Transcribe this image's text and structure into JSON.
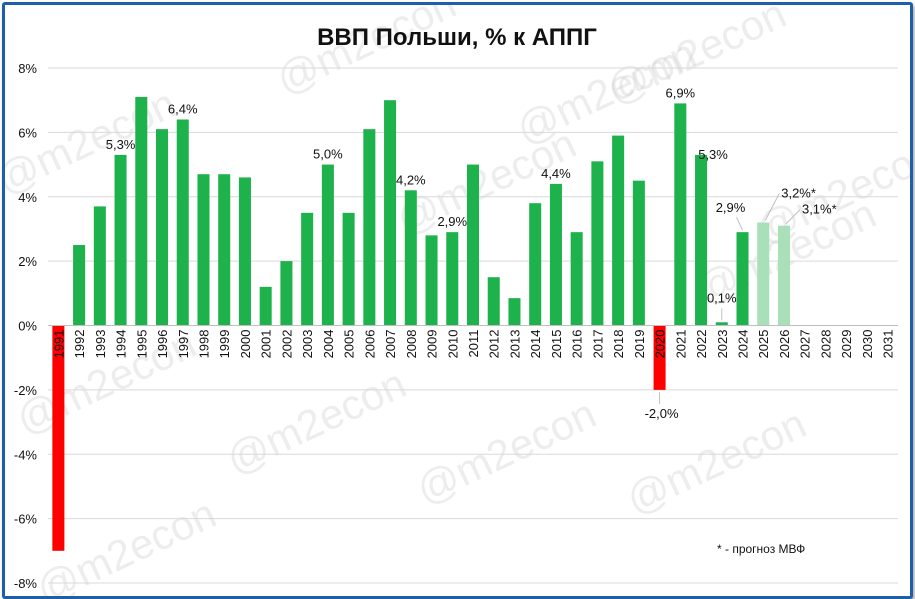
{
  "chart_data": {
    "type": "bar",
    "title": "ВВП Польши, % к АППГ",
    "xlabel": "",
    "ylabel": "",
    "ylim": [
      -8,
      8
    ],
    "yticks": [
      "8%",
      "6%",
      "4%",
      "2%",
      "0%",
      "-2%",
      "-4%",
      "-6%",
      "-8%"
    ],
    "grid": true,
    "categories": [
      "1991",
      "1992",
      "1993",
      "1994",
      "1995",
      "1996",
      "1997",
      "1998",
      "1999",
      "2000",
      "2001",
      "2002",
      "2003",
      "2004",
      "2005",
      "2006",
      "2007",
      "2008",
      "2009",
      "2010",
      "2011",
      "2012",
      "2013",
      "2014",
      "2015",
      "2016",
      "2017",
      "2018",
      "2019",
      "2020",
      "2021",
      "2022",
      "2023",
      "2024",
      "2025",
      "2026",
      "2027",
      "2028",
      "2029",
      "2030",
      "2031"
    ],
    "values": [
      -7.0,
      2.5,
      3.7,
      5.3,
      7.1,
      6.1,
      6.4,
      4.7,
      4.7,
      4.6,
      1.2,
      2.0,
      3.5,
      5.0,
      3.5,
      6.1,
      7.0,
      4.2,
      2.8,
      2.9,
      5.0,
      1.5,
      0.85,
      3.8,
      4.4,
      2.9,
      5.1,
      5.9,
      4.5,
      -2.0,
      6.9,
      5.3,
      0.1,
      2.9,
      3.2,
      3.1,
      null,
      null,
      null,
      null,
      null
    ],
    "colors": {
      "positive": "#1db24b",
      "negative": "#ff0000",
      "forecast": "#a9dfb9",
      "frame": "#1f5fa8",
      "grid": "#d9d9d9"
    },
    "forecast_categories": [
      "2025",
      "2026"
    ],
    "negative_highlight_categories": [
      "1991",
      "2020"
    ],
    "data_labels": [
      {
        "category": "1994",
        "text": "5,3%"
      },
      {
        "category": "1997",
        "text": "6,4%"
      },
      {
        "category": "2004",
        "text": "5,0%"
      },
      {
        "category": "2008",
        "text": "4,2%"
      },
      {
        "category": "2010",
        "text": "2,9%"
      },
      {
        "category": "2015",
        "text": "4,4%"
      },
      {
        "category": "2020",
        "text": "-2,0%"
      },
      {
        "category": "2021",
        "text": "6,9%"
      },
      {
        "category": "2022",
        "text": "5,3%"
      },
      {
        "category": "2023",
        "text": "0,1%"
      },
      {
        "category": "2024",
        "text": "2,9%"
      },
      {
        "category": "2025",
        "text": "3,2%*"
      },
      {
        "category": "2026",
        "text": "3,1%*"
      }
    ],
    "footnote": "* - прогноз МВФ",
    "watermark": "@m2econ"
  }
}
